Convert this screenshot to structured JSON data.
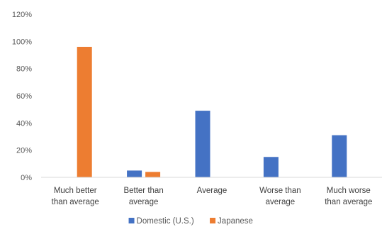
{
  "chart_data": {
    "type": "bar",
    "categories": [
      [
        "Much better",
        "than average"
      ],
      [
        "Better than",
        "average"
      ],
      [
        "Average"
      ],
      [
        "Worse than",
        "average"
      ],
      [
        "Much worse",
        "than average"
      ]
    ],
    "series": [
      {
        "name": "Domestic (U.S.)",
        "color": "#4472C4",
        "values": [
          0,
          5,
          49,
          15,
          31
        ]
      },
      {
        "name": "Japanese",
        "color": "#ED7D31",
        "values": [
          96,
          4,
          0,
          0,
          0
        ]
      }
    ],
    "y_ticks": [
      "0%",
      "20%",
      "40%",
      "60%",
      "80%",
      "100%",
      "120%"
    ],
    "ylim": [
      0,
      120
    ],
    "title": "",
    "xlabel": "",
    "ylabel": "",
    "grid": false,
    "legend": "bottom"
  }
}
